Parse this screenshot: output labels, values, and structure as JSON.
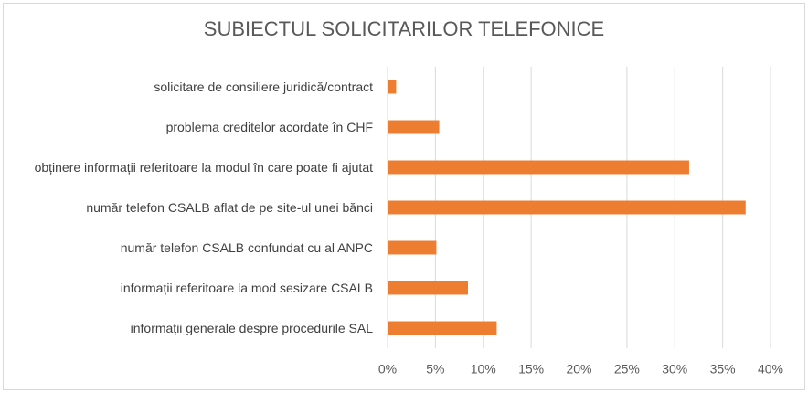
{
  "chart_data": {
    "type": "bar",
    "orientation": "horizontal",
    "title": "SUBIECTUL SOLICITARILOR TELEFONICE",
    "categories": [
      "solicitare de consiliere juridică/contract",
      "problema creditelor acordate în CHF",
      "obținere informații referitoare la modul în care poate fi ajutat",
      "număr telefon CSALB aflat de pe site-ul unei bănci",
      "număr telefon CSALB confundat cu al ANPC",
      "informații referitoare la mod sesizare CSALB",
      "informații generale despre procedurile SAL"
    ],
    "values": [
      0.9,
      5.4,
      31.5,
      37.4,
      5.1,
      8.4,
      11.4
    ],
    "color": "#ed7d31",
    "xlim": [
      0,
      40
    ],
    "xticks": [
      {
        "value": 0,
        "label": "0%"
      },
      {
        "value": 5,
        "label": "5%"
      },
      {
        "value": 10,
        "label": "10%"
      },
      {
        "value": 15,
        "label": "15%"
      },
      {
        "value": 20,
        "label": "20%"
      },
      {
        "value": 25,
        "label": "25%"
      },
      {
        "value": 30,
        "label": "30%"
      },
      {
        "value": 35,
        "label": "35%"
      },
      {
        "value": 40,
        "label": "40%"
      }
    ],
    "grid": true
  }
}
